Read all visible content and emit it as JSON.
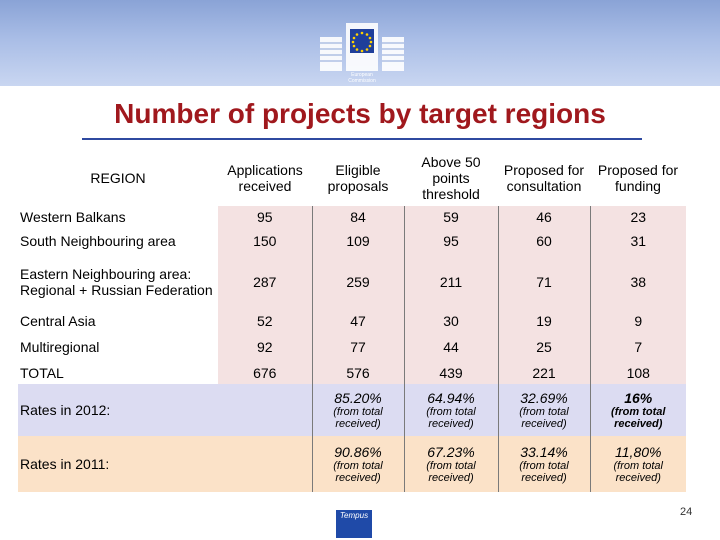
{
  "header": {
    "org_line1": "European",
    "org_line2": "Commission"
  },
  "title": "Number of projects by target regions",
  "table": {
    "columns": [
      "REGION",
      "Applications received",
      "Eligible proposals",
      "Above 50 points threshold",
      "Proposed for consultation",
      "Proposed for funding"
    ],
    "rows": [
      {
        "region": "Western Balkans",
        "values": [
          "95",
          "84",
          "59",
          "46",
          "23"
        ]
      },
      {
        "region": "South Neighbouring area",
        "values": [
          "150",
          "109",
          "95",
          "60",
          "31"
        ]
      },
      {
        "region": "Eastern Neighbouring area: Regional + Russian Federation",
        "values": [
          "287",
          "259",
          "211",
          "71",
          "38"
        ]
      },
      {
        "region": "Central Asia",
        "values": [
          "52",
          "47",
          "30",
          "19",
          "9"
        ]
      },
      {
        "region": "Multiregional",
        "values": [
          "92",
          "77",
          "44",
          "25",
          "7"
        ]
      },
      {
        "region": "TOTAL",
        "values": [
          "676",
          "576",
          "439",
          "221",
          "108"
        ]
      }
    ],
    "rates_2012": {
      "label": "Rates in 2012:",
      "values": [
        {
          "pct": "85.20%",
          "note": "(from total received)"
        },
        {
          "pct": "64.94%",
          "note": "(from total received)"
        },
        {
          "pct": "32.69%",
          "note": "(from total received)"
        },
        {
          "pct": "16%",
          "note": "(from total received)"
        }
      ]
    },
    "rates_2011": {
      "label": "Rates in 2011:",
      "values": [
        {
          "pct": "90.86%",
          "note": "(from total received)"
        },
        {
          "pct": "67.23%",
          "note": "(from total received)"
        },
        {
          "pct": "33.14%",
          "note": "(from total received)"
        },
        {
          "pct": "11,80%",
          "note": "(from total received)"
        }
      ]
    }
  },
  "footer": {
    "logo_text": "Tempus",
    "page_number": "24"
  }
}
